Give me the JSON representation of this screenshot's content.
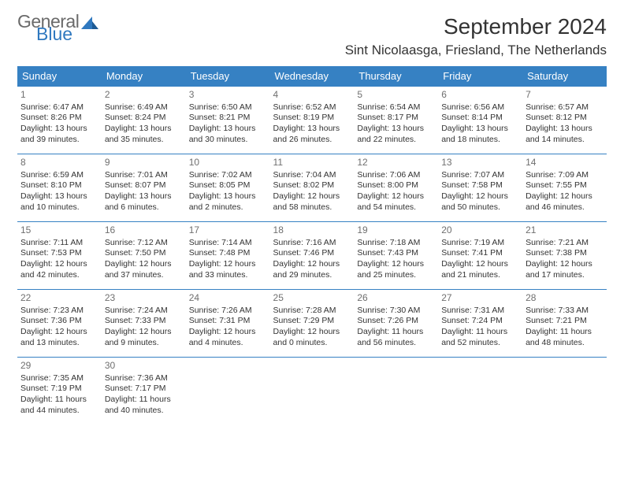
{
  "logo": {
    "text1": "General",
    "text2": "Blue",
    "triangle_color": "#2f78bf"
  },
  "title": "September 2024",
  "location": "Sint Nicolaasga, Friesland, The Netherlands",
  "colors": {
    "header_bg": "#3681c3",
    "header_text": "#ffffff",
    "border": "#3681c3",
    "daynum": "#6f6f6f",
    "body_text": "#333333",
    "background": "#ffffff"
  },
  "weekdays": [
    "Sunday",
    "Monday",
    "Tuesday",
    "Wednesday",
    "Thursday",
    "Friday",
    "Saturday"
  ],
  "days": [
    {
      "n": "1",
      "sr": "6:47 AM",
      "ss": "8:26 PM",
      "dl": "13 hours and 39 minutes."
    },
    {
      "n": "2",
      "sr": "6:49 AM",
      "ss": "8:24 PM",
      "dl": "13 hours and 35 minutes."
    },
    {
      "n": "3",
      "sr": "6:50 AM",
      "ss": "8:21 PM",
      "dl": "13 hours and 30 minutes."
    },
    {
      "n": "4",
      "sr": "6:52 AM",
      "ss": "8:19 PM",
      "dl": "13 hours and 26 minutes."
    },
    {
      "n": "5",
      "sr": "6:54 AM",
      "ss": "8:17 PM",
      "dl": "13 hours and 22 minutes."
    },
    {
      "n": "6",
      "sr": "6:56 AM",
      "ss": "8:14 PM",
      "dl": "13 hours and 18 minutes."
    },
    {
      "n": "7",
      "sr": "6:57 AM",
      "ss": "8:12 PM",
      "dl": "13 hours and 14 minutes."
    },
    {
      "n": "8",
      "sr": "6:59 AM",
      "ss": "8:10 PM",
      "dl": "13 hours and 10 minutes."
    },
    {
      "n": "9",
      "sr": "7:01 AM",
      "ss": "8:07 PM",
      "dl": "13 hours and 6 minutes."
    },
    {
      "n": "10",
      "sr": "7:02 AM",
      "ss": "8:05 PM",
      "dl": "13 hours and 2 minutes."
    },
    {
      "n": "11",
      "sr": "7:04 AM",
      "ss": "8:02 PM",
      "dl": "12 hours and 58 minutes."
    },
    {
      "n": "12",
      "sr": "7:06 AM",
      "ss": "8:00 PM",
      "dl": "12 hours and 54 minutes."
    },
    {
      "n": "13",
      "sr": "7:07 AM",
      "ss": "7:58 PM",
      "dl": "12 hours and 50 minutes."
    },
    {
      "n": "14",
      "sr": "7:09 AM",
      "ss": "7:55 PM",
      "dl": "12 hours and 46 minutes."
    },
    {
      "n": "15",
      "sr": "7:11 AM",
      "ss": "7:53 PM",
      "dl": "12 hours and 42 minutes."
    },
    {
      "n": "16",
      "sr": "7:12 AM",
      "ss": "7:50 PM",
      "dl": "12 hours and 37 minutes."
    },
    {
      "n": "17",
      "sr": "7:14 AM",
      "ss": "7:48 PM",
      "dl": "12 hours and 33 minutes."
    },
    {
      "n": "18",
      "sr": "7:16 AM",
      "ss": "7:46 PM",
      "dl": "12 hours and 29 minutes."
    },
    {
      "n": "19",
      "sr": "7:18 AM",
      "ss": "7:43 PM",
      "dl": "12 hours and 25 minutes."
    },
    {
      "n": "20",
      "sr": "7:19 AM",
      "ss": "7:41 PM",
      "dl": "12 hours and 21 minutes."
    },
    {
      "n": "21",
      "sr": "7:21 AM",
      "ss": "7:38 PM",
      "dl": "12 hours and 17 minutes."
    },
    {
      "n": "22",
      "sr": "7:23 AM",
      "ss": "7:36 PM",
      "dl": "12 hours and 13 minutes."
    },
    {
      "n": "23",
      "sr": "7:24 AM",
      "ss": "7:33 PM",
      "dl": "12 hours and 9 minutes."
    },
    {
      "n": "24",
      "sr": "7:26 AM",
      "ss": "7:31 PM",
      "dl": "12 hours and 4 minutes."
    },
    {
      "n": "25",
      "sr": "7:28 AM",
      "ss": "7:29 PM",
      "dl": "12 hours and 0 minutes."
    },
    {
      "n": "26",
      "sr": "7:30 AM",
      "ss": "7:26 PM",
      "dl": "11 hours and 56 minutes."
    },
    {
      "n": "27",
      "sr": "7:31 AM",
      "ss": "7:24 PM",
      "dl": "11 hours and 52 minutes."
    },
    {
      "n": "28",
      "sr": "7:33 AM",
      "ss": "7:21 PM",
      "dl": "11 hours and 48 minutes."
    },
    {
      "n": "29",
      "sr": "7:35 AM",
      "ss": "7:19 PM",
      "dl": "11 hours and 44 minutes."
    },
    {
      "n": "30",
      "sr": "7:36 AM",
      "ss": "7:17 PM",
      "dl": "11 hours and 40 minutes."
    }
  ],
  "labels": {
    "sunrise": "Sunrise:",
    "sunset": "Sunset:",
    "daylight": "Daylight:"
  }
}
